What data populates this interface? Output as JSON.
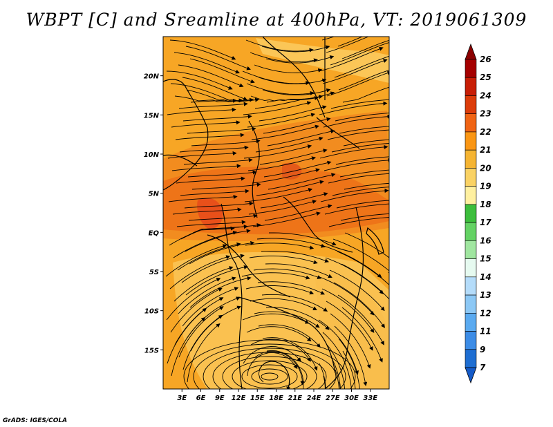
{
  "title": "WBPT [C] and Sreamline at 400hPa, VT: 2019061309",
  "footer": "GrADS: IGES/COLA",
  "map": {
    "region": "Central and Southern Africa",
    "lon_range": [
      0,
      36
    ],
    "lat_range": [
      -20,
      25
    ],
    "lon_ticks": [
      {
        "value": 3,
        "label": "3E"
      },
      {
        "value": 6,
        "label": "6E"
      },
      {
        "value": 9,
        "label": "9E"
      },
      {
        "value": 12,
        "label": "12E"
      },
      {
        "value": 15,
        "label": "15E"
      },
      {
        "value": 18,
        "label": "18E"
      },
      {
        "value": 21,
        "label": "21E"
      },
      {
        "value": 24,
        "label": "24E"
      },
      {
        "value": 27,
        "label": "27E"
      },
      {
        "value": 30,
        "label": "30E"
      },
      {
        "value": 33,
        "label": "33E"
      }
    ],
    "lat_ticks": [
      {
        "value": 20,
        "label": "20N"
      },
      {
        "value": 15,
        "label": "15N"
      },
      {
        "value": 10,
        "label": "10N"
      },
      {
        "value": 5,
        "label": "5N"
      },
      {
        "value": 0,
        "label": "EQ"
      },
      {
        "value": -5,
        "label": "5S"
      },
      {
        "value": -10,
        "label": "10S"
      },
      {
        "value": -15,
        "label": "15S"
      }
    ]
  },
  "colorbar": {
    "labels": [
      "26",
      "25",
      "24",
      "23",
      "22",
      "21",
      "20",
      "19",
      "18",
      "17",
      "16",
      "15",
      "14",
      "13",
      "12",
      "11",
      "9",
      "7"
    ],
    "colors": [
      "#a50000",
      "#c81e06",
      "#dc3c0a",
      "#f06414",
      "#fa9614",
      "#f5b432",
      "#fad264",
      "#fff0a0",
      "#3cbe3c",
      "#64d264",
      "#a0e6a0",
      "#e6faf0",
      "#b4dcfa",
      "#8cc8f5",
      "#5aaaf0",
      "#3c8ce6",
      "#1e6ed2",
      "#1464c8"
    ],
    "top_arrow_color": "#8c0000",
    "bottom_arrow_color": "#145ac8"
  },
  "wbpt_field": {
    "background": "#f7a625",
    "zones": [
      {
        "name": "warm-band-north",
        "value": 22,
        "color": "#f28c1f"
      },
      {
        "name": "warm-band-core",
        "value": 23,
        "color": "#ee7418"
      },
      {
        "name": "hot-spot-west",
        "value": 24,
        "color": "#e8501a"
      },
      {
        "name": "hot-spot-central",
        "value": 24,
        "color": "#e45a1a"
      },
      {
        "name": "cool-area-south",
        "value": 20,
        "color": "#fac150"
      },
      {
        "name": "cool-area-northeast",
        "value": 20,
        "color": "#fbc657"
      },
      {
        "name": "cool-area-southeast",
        "value": 20,
        "color": "#f9be4c"
      }
    ]
  }
}
